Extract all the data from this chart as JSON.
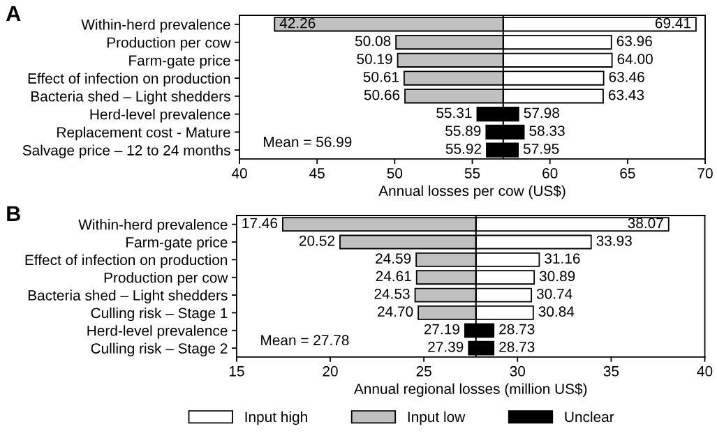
{
  "chart_data": [
    {
      "type": "bar",
      "orientation": "horizontal",
      "title": "A",
      "xlabel": "Annual losses per cow (US$)",
      "categories": [
        "Within-herd prevalence",
        "Production per cow",
        "Farm-gate price",
        "Effect of infection on production",
        "Bacteria shed – Light shedders",
        "Herd-level prevalence",
        "Replacement cost - Mature",
        "Salvage price – 12 to 24 months"
      ],
      "series": [
        {
          "color": "#ffffff",
          "base": [
            56.99,
            56.99,
            56.99,
            56.99,
            56.99,
            null,
            null,
            null
          ],
          "values": [
            12.42,
            6.97,
            7.01,
            6.47,
            6.44,
            null,
            null,
            null
          ]
        },
        {
          "color": "#c0c0c0",
          "base": [
            56.99,
            56.99,
            56.99,
            56.99,
            56.99,
            null,
            null,
            null
          ],
          "values": [
            -14.73,
            -6.91,
            -6.8,
            -6.38,
            -6.33,
            null,
            null,
            null
          ]
        },
        {
          "color": "#000000",
          "base": [
            null,
            null,
            null,
            null,
            null,
            55.31,
            55.89,
            55.92
          ],
          "values": [
            null,
            null,
            null,
            null,
            null,
            2.67,
            2.44,
            2.03
          ]
        }
      ],
      "xlim": [
        40,
        70
      ],
      "xticks": [
        40,
        45,
        50,
        55,
        60,
        65,
        70
      ],
      "ref_lines": [
        {
          "axis": "x",
          "value": 56.99
        }
      ],
      "annotations": [
        "Mean = 56.99",
        {
          "text": "42.26",
          "x": 42.26,
          "y": "Within-herd prevalence"
        },
        {
          "text": "69.41",
          "x": 69.41,
          "y": "Within-herd prevalence"
        },
        {
          "text": "50.08",
          "x": 50.08,
          "y": "Production per cow"
        },
        {
          "text": "63.96",
          "x": 63.96,
          "y": "Production per cow"
        },
        {
          "text": "50.19",
          "x": 50.19,
          "y": "Farm-gate price"
        },
        {
          "text": "64.00",
          "x": 64.0,
          "y": "Farm-gate price"
        },
        {
          "text": "50.61",
          "x": 50.61,
          "y": "Effect of infection on production"
        },
        {
          "text": "63.46",
          "x": 63.46,
          "y": "Effect of infection on production"
        },
        {
          "text": "50.66",
          "x": 50.66,
          "y": "Bacteria shed – Light shedders"
        },
        {
          "text": "63.43",
          "x": 63.43,
          "y": "Bacteria shed – Light shedders"
        },
        {
          "text": "55.31",
          "x": 55.31,
          "y": "Herd-level prevalence"
        },
        {
          "text": "57.98",
          "x": 57.98,
          "y": "Herd-level prevalence"
        },
        {
          "text": "55.89",
          "x": 55.89,
          "y": "Replacement cost - Mature"
        },
        {
          "text": "58.33",
          "x": 58.33,
          "y": "Replacement cost - Mature"
        },
        {
          "text": "55.92",
          "x": 55.92,
          "y": "Salvage price – 12 to 24 months"
        },
        {
          "text": "57.95",
          "x": 57.95,
          "y": "Salvage price – 12 to 24 months"
        }
      ]
    },
    {
      "type": "bar",
      "orientation": "horizontal",
      "title": "B",
      "xlabel": "Annual regional losses (million US$)",
      "categories": [
        "Within-herd prevalence",
        "Farm-gate price",
        "Effect of infection on production",
        "Production per cow",
        "Bacteria shed – Light shedders",
        "Culling risk – Stage 1",
        "Herd-level prevalence",
        "Culling risk – Stage 2"
      ],
      "series": [
        {
          "name": "Input high",
          "color": "#ffffff",
          "base": [
            27.78,
            27.78,
            27.78,
            27.78,
            27.78,
            27.78,
            null,
            null
          ],
          "values": [
            10.29,
            6.15,
            3.38,
            3.11,
            2.96,
            3.06,
            null,
            null
          ]
        },
        {
          "name": "Input low",
          "color": "#c0c0c0",
          "base": [
            27.78,
            27.78,
            27.78,
            27.78,
            27.78,
            27.78,
            null,
            null
          ],
          "values": [
            -10.32,
            -7.26,
            -3.19,
            -3.17,
            -3.25,
            -3.08,
            null,
            null
          ]
        },
        {
          "name": "Unclear",
          "color": "#000000",
          "base": [
            null,
            null,
            null,
            null,
            null,
            null,
            27.19,
            27.39
          ],
          "values": [
            null,
            null,
            null,
            null,
            null,
            null,
            1.54,
            1.34
          ]
        }
      ],
      "xlim": [
        15,
        40
      ],
      "xticks": [
        15,
        20,
        25,
        30,
        35,
        40
      ],
      "ref_lines": [
        {
          "axis": "x",
          "value": 27.78
        }
      ],
      "legend": "bottom",
      "annotations": [
        "Mean = 27.78",
        {
          "text": "17.46",
          "x": 17.46,
          "y": "Within-herd prevalence"
        },
        {
          "text": "38.07",
          "x": 38.07,
          "y": "Within-herd prevalence"
        },
        {
          "text": "20.52",
          "x": 20.52,
          "y": "Farm-gate price"
        },
        {
          "text": "33.93",
          "x": 33.93,
          "y": "Farm-gate price"
        },
        {
          "text": "24.59",
          "x": 24.59,
          "y": "Effect of infection on production"
        },
        {
          "text": "31.16",
          "x": 31.16,
          "y": "Effect of infection on production"
        },
        {
          "text": "24.61",
          "x": 24.61,
          "y": "Production per cow"
        },
        {
          "text": "30.89",
          "x": 30.89,
          "y": "Production per cow"
        },
        {
          "text": "24.53",
          "x": 24.53,
          "y": "Bacteria shed – Light shedders"
        },
        {
          "text": "30.74",
          "x": 30.74,
          "y": "Bacteria shed – Light shedders"
        },
        {
          "text": "24.70",
          "x": 24.7,
          "y": "Culling risk – Stage 1"
        },
        {
          "text": "30.84",
          "x": 30.84,
          "y": "Culling risk – Stage 1"
        },
        {
          "text": "27.19",
          "x": 27.19,
          "y": "Herd-level prevalence"
        },
        {
          "text": "28.73",
          "x": 28.73,
          "y": "Herd-level prevalence"
        },
        {
          "text": "27.39",
          "x": 27.39,
          "y": "Culling risk – Stage 2"
        },
        {
          "text": "28.73",
          "x": 28.73,
          "y": "Culling risk – Stage 2"
        }
      ]
    }
  ]
}
